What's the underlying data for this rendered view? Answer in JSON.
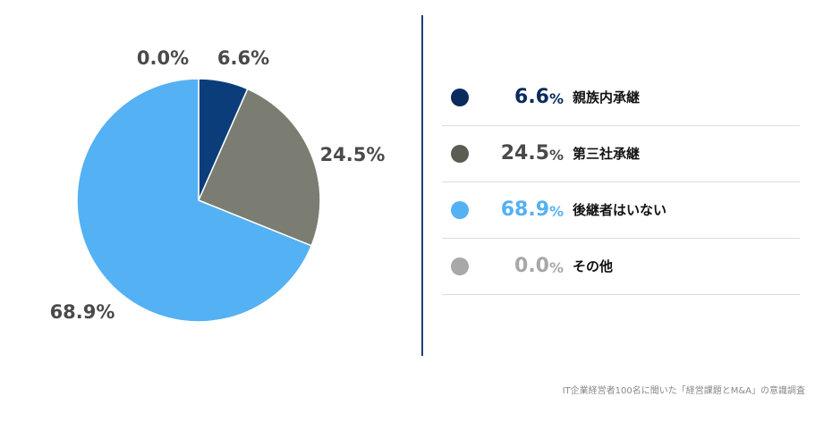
{
  "chart_data": {
    "type": "pie",
    "slices": [
      {
        "label": "親族内承継",
        "value": 6.6,
        "display": "6.6",
        "color": "#0b3d7a",
        "pct_color": "#0b2a5e"
      },
      {
        "label": "第三社承継",
        "value": 24.5,
        "display": "24.5",
        "color": "#7b7d72",
        "pct_color": "#4a4a4a"
      },
      {
        "label": "後継者はいない",
        "value": 68.9,
        "display": "68.9",
        "color": "#54b1f4",
        "pct_color": "#54b1f4"
      },
      {
        "label": "その他",
        "value": 0.0,
        "display": "0.0",
        "color": "#a8a8a8",
        "pct_color": "#a8a8a8"
      }
    ],
    "slice_labels": [
      "6.6%",
      "24.5%",
      "68.9%",
      "0.0%"
    ],
    "unit": "%"
  },
  "legend_dot_colors": [
    "#0b2a5e",
    "#5b5d52",
    "#54b1f4",
    "#a8a8a8"
  ],
  "footer": {
    "source": "IT企業経営者100名に聞いた「経営課題とM&A」の意識調査"
  }
}
